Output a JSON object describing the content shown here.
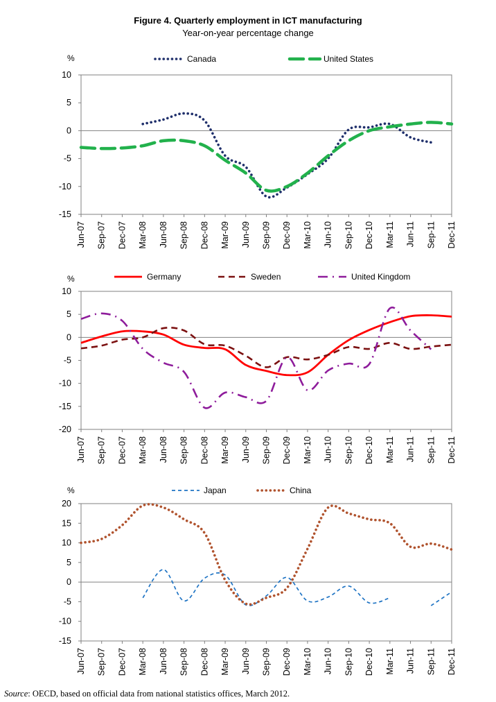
{
  "figure": {
    "title": "Figure 4. Quarterly employment in ICT manufacturing",
    "subtitle": "Year-on-year percentage change"
  },
  "source": {
    "label": "Source",
    "text": ": OECD, based on official data from national statistics offices, March 2012."
  },
  "chart_data": [
    {
      "type": "line",
      "unit_label": "%",
      "ylim": [
        -15,
        10
      ],
      "yticks": [
        10,
        5,
        0,
        -5,
        -10,
        -15
      ],
      "categories": [
        "Jun-07",
        "Sep-07",
        "Dec-07",
        "Mar-08",
        "Jun-08",
        "Sep-08",
        "Dec-08",
        "Mar-09",
        "Jun-09",
        "Sep-09",
        "Dec-09",
        "Mar-10",
        "Jun-10",
        "Sep-10",
        "Dec-10",
        "Mar-11",
        "Jun-11",
        "Sep-11",
        "Dec-11"
      ],
      "legend_position": "top",
      "series": [
        {
          "name": "Canada",
          "color": "#1f2f6b",
          "dash": "dots",
          "values": [
            null,
            null,
            null,
            1.2,
            2.0,
            3.1,
            1.8,
            -4.5,
            -6.5,
            -11.8,
            -10.2,
            -7.8,
            -5.0,
            0.2,
            0.6,
            1.2,
            -1.2,
            -2.1,
            null
          ]
        },
        {
          "name": "United States",
          "color": "#22b14c",
          "dash": "longdash",
          "values": [
            -3.0,
            -3.2,
            -3.1,
            -2.7,
            -1.8,
            -1.8,
            -2.7,
            -5.3,
            -7.6,
            -10.7,
            -10.0,
            -7.6,
            -4.5,
            -1.8,
            0.0,
            0.7,
            1.2,
            1.5,
            1.2
          ]
        }
      ]
    },
    {
      "type": "line",
      "unit_label": "%",
      "ylim": [
        -20,
        10
      ],
      "yticks": [
        10,
        5,
        0,
        -5,
        -10,
        -15,
        -20
      ],
      "categories": [
        "Jun-07",
        "Sep-07",
        "Dec-07",
        "Mar-08",
        "Jun-08",
        "Sep-08",
        "Dec-08",
        "Mar-09",
        "Jun-09",
        "Sep-09",
        "Dec-09",
        "Mar-10",
        "Jun-10",
        "Sep-10",
        "Dec-10",
        "Mar-11",
        "Jun-11",
        "Sep-11",
        "Dec-11"
      ],
      "legend_position": "top",
      "series": [
        {
          "name": "Germany",
          "color": "#ff0000",
          "dash": "solid",
          "values": [
            -1.2,
            0.2,
            1.3,
            1.3,
            0.6,
            -1.6,
            -2.3,
            -2.6,
            -6.0,
            -7.3,
            -8.2,
            -7.6,
            -3.8,
            -0.6,
            1.6,
            3.3,
            4.6,
            4.8,
            4.5
          ]
        },
        {
          "name": "Sweden",
          "color": "#7b1010",
          "dash": "dash",
          "values": [
            -2.4,
            -1.8,
            -0.5,
            0.0,
            2.0,
            1.5,
            -1.5,
            -1.8,
            -4.0,
            -6.5,
            -4.3,
            -4.8,
            -3.8,
            -2.1,
            -2.5,
            -1.2,
            -2.5,
            -2.0,
            -1.6
          ]
        },
        {
          "name": "United Kingdom",
          "color": "#8e1c9b",
          "dash": "dashdot",
          "values": [
            4.0,
            5.2,
            3.6,
            -2.5,
            -5.5,
            -7.5,
            -15.3,
            -12.0,
            -13.0,
            -13.8,
            -4.3,
            -11.5,
            -7.2,
            -5.7,
            -5.8,
            6.3,
            1.5,
            -2.6,
            null
          ]
        }
      ]
    },
    {
      "type": "line",
      "unit_label": "%",
      "ylim": [
        -15,
        20
      ],
      "yticks": [
        20,
        15,
        10,
        5,
        0,
        -5,
        -10,
        -15
      ],
      "categories": [
        "Jun-07",
        "Sep-07",
        "Dec-07",
        "Mar-08",
        "Jun-08",
        "Sep-08",
        "Dec-08",
        "Mar-09",
        "Jun-09",
        "Sep-09",
        "Dec-09",
        "Mar-10",
        "Jun-10",
        "Sep-10",
        "Dec-10",
        "Mar-11",
        "Jun-11",
        "Sep-11",
        "Dec-11"
      ],
      "legend_position": "top",
      "series": [
        {
          "name": "Japan",
          "color": "#1f74c4",
          "dash": "shortdash",
          "values": [
            null,
            null,
            null,
            -4.0,
            3.2,
            -4.8,
            1.0,
            1.8,
            -5.8,
            -3.5,
            1.2,
            -4.8,
            -3.8,
            -1.0,
            -5.3,
            -4.0,
            null,
            -6.0,
            -2.5
          ]
        },
        {
          "name": "China",
          "color": "#b0532e",
          "dash": "dots",
          "values": [
            10.0,
            11.0,
            14.5,
            19.5,
            19.0,
            16.0,
            12.5,
            0.5,
            -5.5,
            -4.0,
            -1.5,
            8.5,
            19.0,
            17.5,
            16.0,
            15.0,
            9.0,
            9.8,
            8.3
          ]
        }
      ]
    }
  ]
}
